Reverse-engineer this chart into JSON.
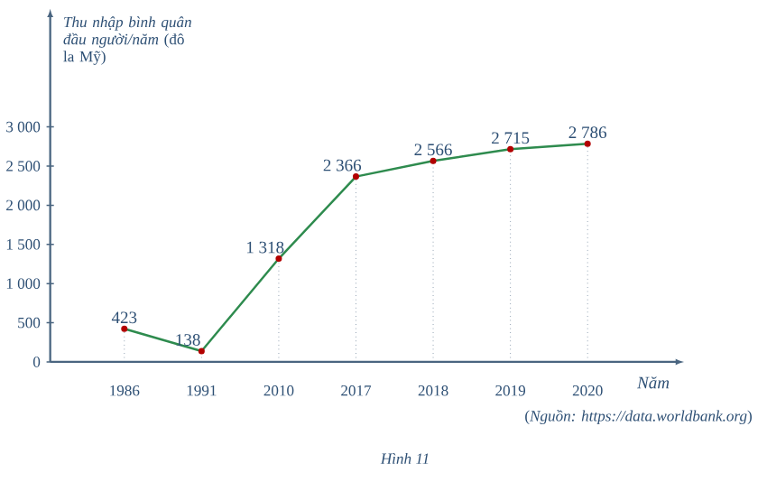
{
  "chart_data": {
    "type": "line",
    "ylabel": "*Thu nhập bình quân đầu người/năm* (đô la Mỹ)",
    "xlabel": "Năm",
    "categories": [
      "1986",
      "1991",
      "2010",
      "2017",
      "2018",
      "2019",
      "2020"
    ],
    "series": [
      {
        "color": "#2e8b4e",
        "values": [
          423,
          138,
          1318,
          2366,
          2566,
          2715,
          2786
        ],
        "value_labels": [
          "423",
          "138",
          "1 318",
          "2 366",
          "2 566",
          "2 715",
          "2 786"
        ]
      }
    ],
    "ylim": [
      0,
      4400
    ],
    "yticks": [
      0,
      500,
      {
        "value": 1000,
        "label": "1 000"
      },
      {
        "value": 1500,
        "label": "1 500"
      },
      {
        "value": 2000,
        "label": "2 000"
      },
      {
        "value": 2500,
        "label": "2 500"
      },
      {
        "value": 3000,
        "label": "3 000"
      }
    ],
    "marker": "circle",
    "line_style": "solid",
    "grid": false,
    "annotations": [
      "(*Nguồn: https://data.worldbank.org*)",
      "*Hình 11*"
    ]
  }
}
